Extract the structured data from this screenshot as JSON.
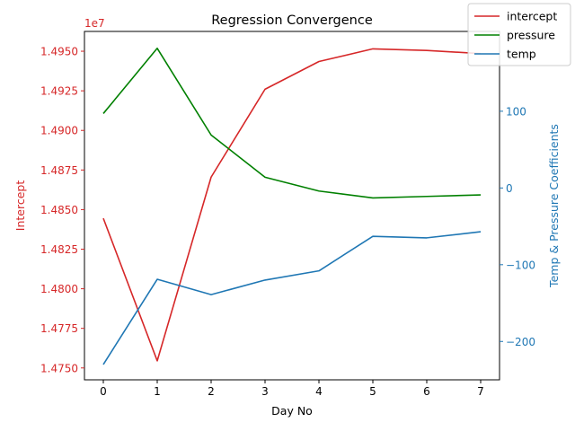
{
  "chart_data": {
    "type": "line",
    "title": "Regression Convergence",
    "xlabel": "Day No",
    "x": [
      0,
      1,
      2,
      3,
      4,
      5,
      6,
      7
    ],
    "xlim": [
      -0.35,
      7.35
    ],
    "left_axis": {
      "label": "Intercept",
      "color": "#d62728",
      "ylim": [
        14742500,
        14962500
      ],
      "ticks": [
        14750000,
        14775000,
        14800000,
        14825000,
        14850000,
        14875000,
        14900000,
        14925000,
        14950000
      ],
      "tick_labels": [
        "1.4750",
        "1.4775",
        "1.4800",
        "1.4825",
        "1.4850",
        "1.4875",
        "1.4900",
        "1.4925",
        "1.4950"
      ],
      "offset_label": "1e7"
    },
    "right_axis": {
      "label": "Temp & Pressure Coefficients",
      "color": "#1f77b4",
      "ylim": [
        -250,
        204
      ],
      "ticks": [
        -200,
        -100,
        0,
        100
      ],
      "tick_labels": [
        "−200",
        "−100",
        "0",
        "100"
      ]
    },
    "series": [
      {
        "name": "intercept",
        "axis": "left",
        "color": "#d62728",
        "values": [
          14844500,
          14754500,
          14870500,
          14926000,
          14943500,
          14951500,
          14950500,
          14948500
        ]
      },
      {
        "name": "pressure",
        "axis": "right",
        "color": "#008000",
        "values": [
          97,
          182,
          69,
          14,
          -4,
          -13,
          -11,
          -9
        ]
      },
      {
        "name": "temp",
        "axis": "right",
        "color": "#1f77b4",
        "values": [
          -230,
          -119,
          -139,
          -120,
          -108,
          -63,
          -65,
          -57
        ]
      }
    ],
    "legend_position": "top-right",
    "grid": false
  }
}
